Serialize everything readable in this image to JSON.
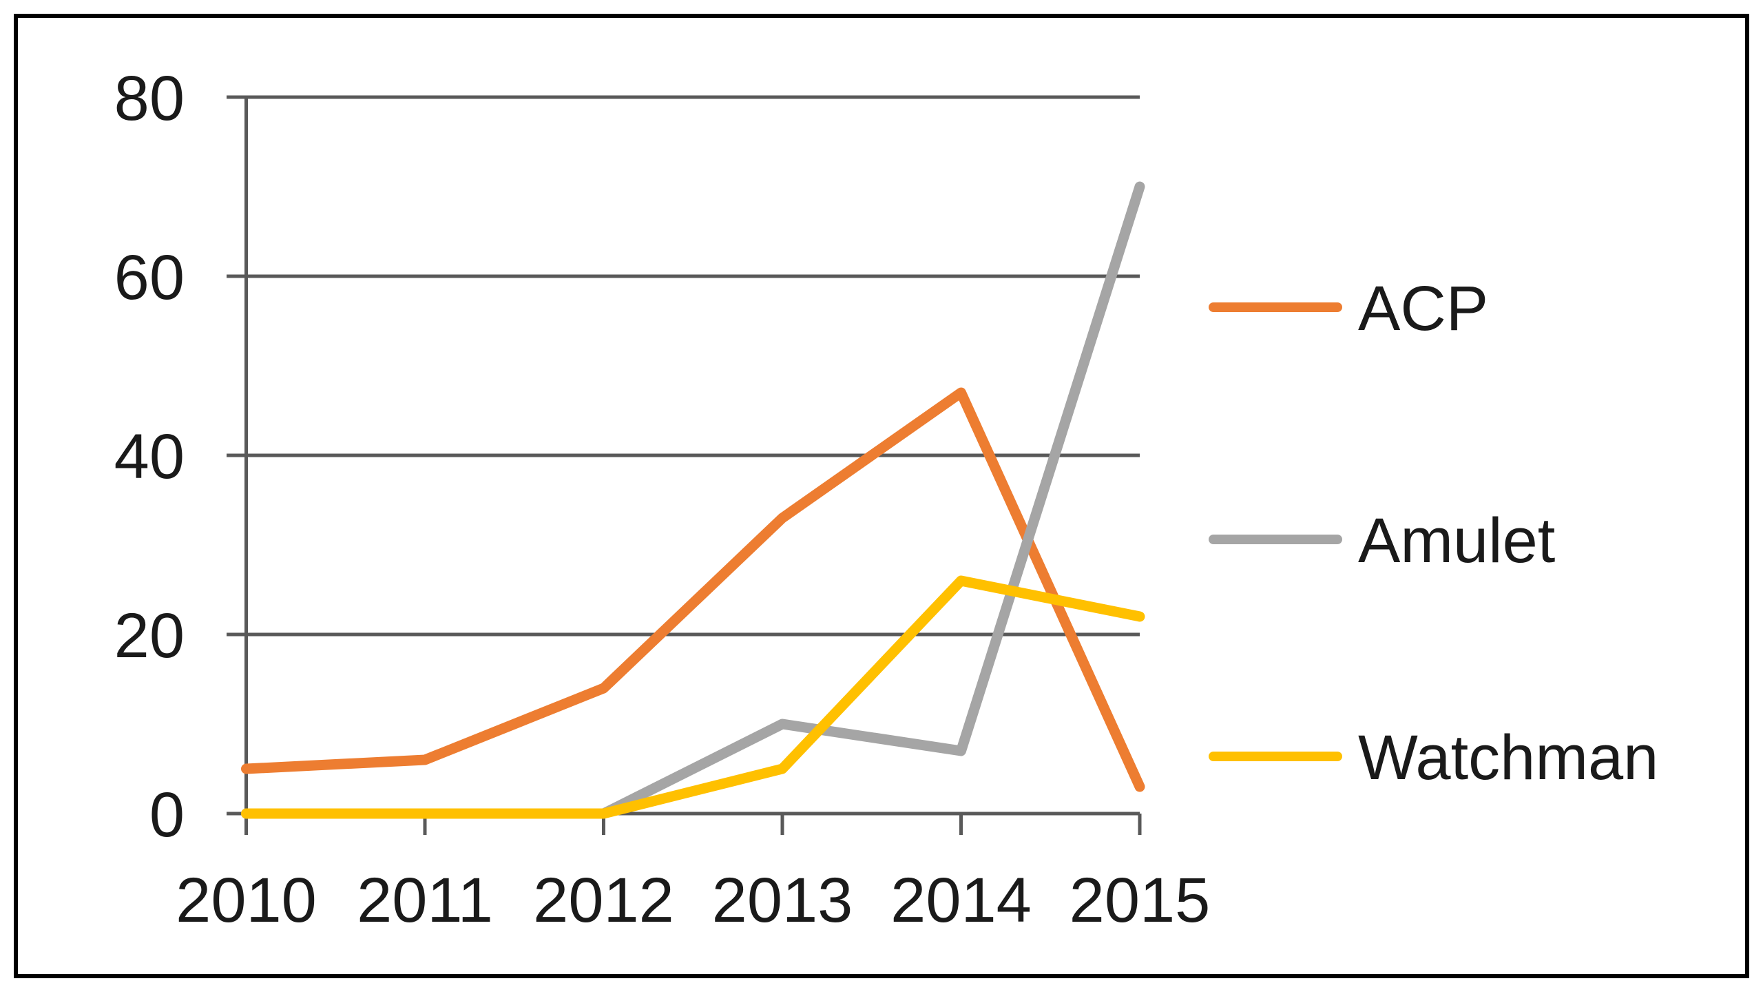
{
  "chart_data": {
    "type": "line",
    "categories": [
      "2010",
      "2011",
      "2012",
      "2013",
      "2014",
      "2015"
    ],
    "series": [
      {
        "name": "ACP",
        "color": "#ED7D31",
        "values": [
          5,
          6,
          14,
          33,
          47,
          3
        ]
      },
      {
        "name": "Amulet",
        "color": "#A5A5A5",
        "values": [
          0,
          0,
          0,
          10,
          7,
          70
        ]
      },
      {
        "name": "Watchman",
        "color": "#FFC000",
        "values": [
          0,
          0,
          0,
          5,
          26,
          22
        ]
      }
    ],
    "ylim": [
      0,
      80
    ],
    "yticks": [
      0,
      20,
      40,
      60,
      80
    ],
    "ytick_labels": [
      "0",
      "20",
      "40",
      "60",
      "80"
    ],
    "grid": true,
    "legend_position": "right",
    "legend_labels": [
      "ACP",
      "Amulet",
      "Watchman"
    ]
  },
  "colors": {
    "axis": "#595959",
    "text": "#1a1a1a",
    "frame_border": "#000000",
    "background": "#ffffff"
  }
}
